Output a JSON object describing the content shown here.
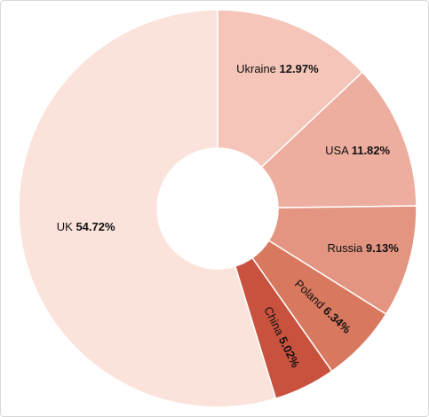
{
  "chart_data": {
    "type": "donut",
    "categories": [
      "Ukraine",
      "USA",
      "Russia",
      "Poland",
      "China",
      "UK"
    ],
    "values": [
      12.97,
      11.82,
      9.13,
      6.34,
      5.02,
      54.72
    ],
    "value_labels": [
      "12.97%",
      "11.82%",
      "9.13%",
      "6.34%",
      "5.02%",
      "54.72%"
    ],
    "colors": [
      "#f4c5b8",
      "#eeae9f",
      "#e39581",
      "#d8785f",
      "#c9523e",
      "#fbe3db"
    ]
  }
}
